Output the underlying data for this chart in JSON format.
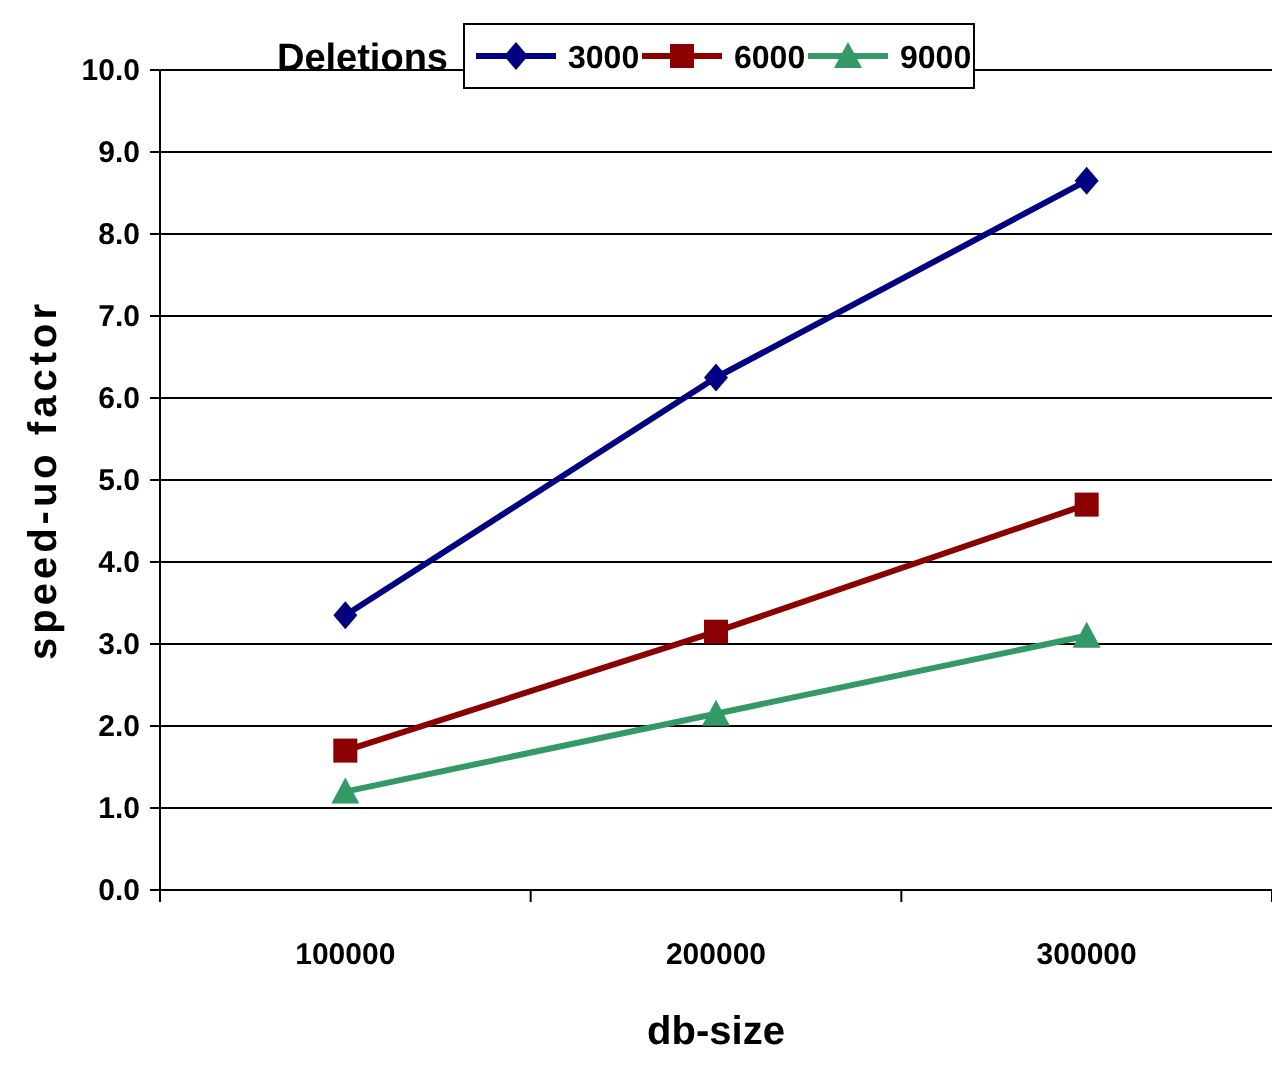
{
  "chart_data": {
    "type": "line",
    "xlabel": "db-size",
    "ylabel": "speed-uo factor",
    "legend_title": "Deletions",
    "legend": "top right",
    "grid": "y",
    "categories": [
      "100000",
      "200000",
      "300000"
    ],
    "ylim": [
      0,
      10
    ],
    "yticks": [
      {
        "value": 0,
        "label": "0.0"
      },
      {
        "value": 1,
        "label": "1.0"
      },
      {
        "value": 2,
        "label": "2.0"
      },
      {
        "value": 3,
        "label": "3.0"
      },
      {
        "value": 4,
        "label": "4.0"
      },
      {
        "value": 5,
        "label": "5.0"
      },
      {
        "value": 6,
        "label": "6.0"
      },
      {
        "value": 7,
        "label": "7.0"
      },
      {
        "value": 8,
        "label": "8.0"
      },
      {
        "value": 9,
        "label": "9.0"
      },
      {
        "value": 10,
        "label": "10.0"
      }
    ],
    "series": [
      {
        "name": "3000",
        "color": "#000080",
        "marker": "diamond",
        "values": [
          3.35,
          6.25,
          8.65
        ]
      },
      {
        "name": "6000",
        "color": "#8b0000",
        "marker": "square",
        "values": [
          1.7,
          3.15,
          4.7
        ]
      },
      {
        "name": "9000",
        "color": "#339966",
        "marker": "triangle",
        "values": [
          1.2,
          2.15,
          3.1
        ]
      }
    ]
  }
}
